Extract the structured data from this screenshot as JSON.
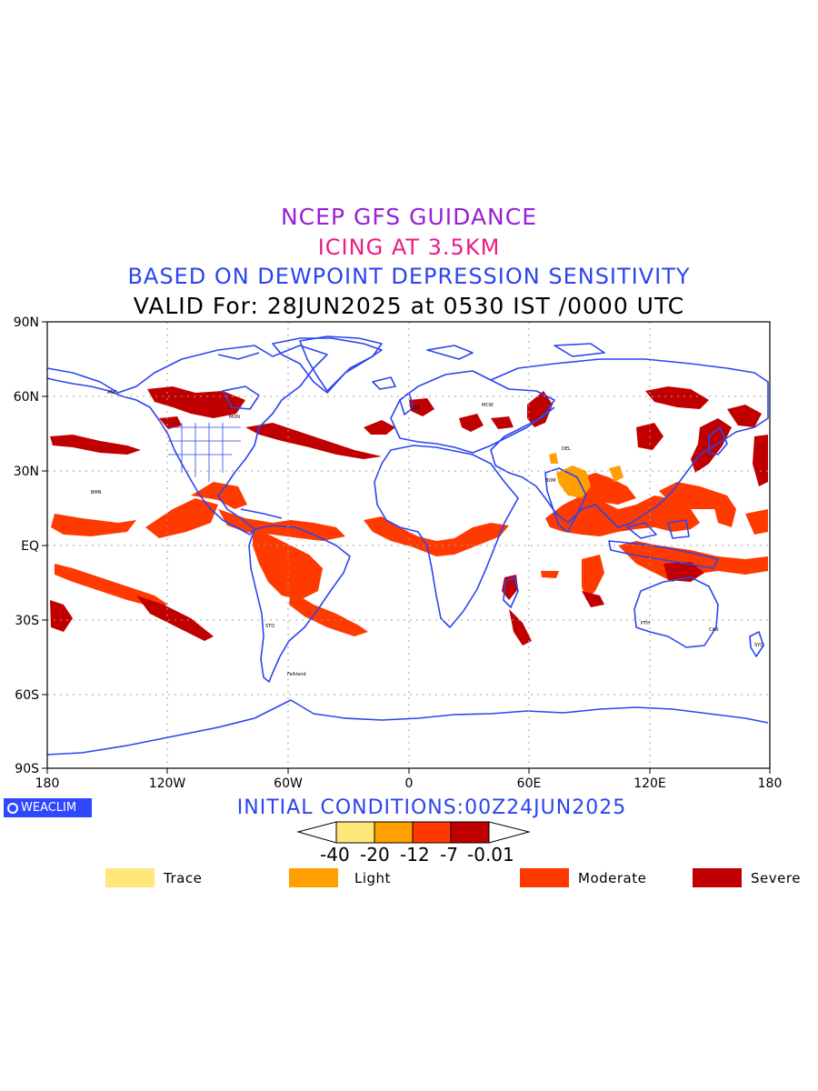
{
  "titles": {
    "line1": "NCEP GFS GUIDANCE",
    "line2": "ICING AT 3.5KM",
    "line3": "BASED ON DEWPOINT DEPRESSION SENSITIVITY",
    "line4": "VALID For: 28JUN2025 at 0530 IST /0000 UTC"
  },
  "colors": {
    "line1": "#9a1fd6",
    "line2": "#ee1b86",
    "line3": "#2a45ee",
    "coast": "#2a45ee",
    "trace": "#ffe77a",
    "light": "#ff9f00",
    "moderate": "#ff3a00",
    "severe": "#c00000"
  },
  "axes": {
    "y_ticks": [
      "90N",
      "60N",
      "30N",
      "EQ",
      "30S",
      "60S",
      "90S"
    ],
    "x_ticks": [
      "180",
      "120W",
      "60W",
      "0",
      "60E",
      "120E",
      "180"
    ]
  },
  "initial_conditions": "INITIAL CONDITIONS:00Z24JUN2025",
  "logo": "WEACLIM",
  "colorbar": {
    "labels": [
      "-40",
      "-20",
      "-12",
      "-7",
      "-0.01"
    ]
  },
  "legend": [
    {
      "label": "Trace",
      "color": "#ffe77a"
    },
    {
      "label": "Light",
      "color": "#ff9f00"
    },
    {
      "label": "Moderate",
      "color": "#ff3a00"
    },
    {
      "label": "Severe",
      "color": "#c00000"
    }
  ],
  "station_labels": [
    "ANC",
    "MON",
    "BMN",
    "Falkland",
    "STO",
    "PTH",
    "CAN",
    "LON",
    "MCW",
    "DEL",
    "BOM",
    "SYD"
  ]
}
